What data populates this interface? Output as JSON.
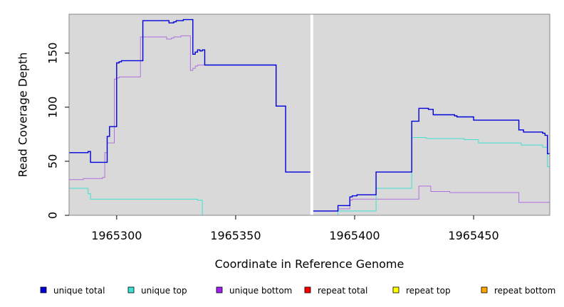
{
  "chart_data": {
    "type": "line",
    "title": "",
    "xlabel": "Coordinate in Reference Genome",
    "ylabel": "Read Coverage Depth",
    "xlim": [
      1965280,
      1965482
    ],
    "ylim": [
      0,
      186
    ],
    "x_ticks": [
      1965300,
      1965350,
      1965400,
      1965450
    ],
    "x_tick_labels": [
      "1965300",
      "1965350",
      "1965400",
      "1965450"
    ],
    "y_ticks": [
      0,
      50,
      100,
      150
    ],
    "y_tick_labels": [
      "0",
      "50",
      "100",
      "150"
    ],
    "gap_marker_x": 1965382,
    "background": "#d9d9d9",
    "grid": false,
    "legend_position": "bottom",
    "series": [
      {
        "name": "unique total",
        "color": "#0000dd",
        "points": [
          [
            1965280,
            58
          ],
          [
            1965288,
            58
          ],
          [
            1965288,
            59
          ],
          [
            1965289,
            59
          ],
          [
            1965289,
            49
          ],
          [
            1965296,
            49
          ],
          [
            1965296,
            73
          ],
          [
            1965297,
            73
          ],
          [
            1965297,
            82
          ],
          [
            1965300,
            82
          ],
          [
            1965300,
            141
          ],
          [
            1965301,
            141
          ],
          [
            1965301,
            142
          ],
          [
            1965302,
            142
          ],
          [
            1965302,
            143
          ],
          [
            1965311,
            143
          ],
          [
            1965311,
            180
          ],
          [
            1965322,
            180
          ],
          [
            1965322,
            178
          ],
          [
            1965324,
            178
          ],
          [
            1965324,
            179
          ],
          [
            1965325,
            179
          ],
          [
            1965325,
            180
          ],
          [
            1965328,
            180
          ],
          [
            1965328,
            181
          ],
          [
            1965332,
            181
          ],
          [
            1965332,
            149
          ],
          [
            1965333,
            149
          ],
          [
            1965333,
            151
          ],
          [
            1965334,
            151
          ],
          [
            1965334,
            153
          ],
          [
            1965335,
            153
          ],
          [
            1965335,
            152
          ],
          [
            1965336,
            152
          ],
          [
            1965336,
            153
          ],
          [
            1965337,
            153
          ],
          [
            1965337,
            139
          ],
          [
            1965367,
            139
          ],
          [
            1965367,
            101
          ],
          [
            1965371,
            101
          ],
          [
            1965371,
            40
          ],
          [
            1965382,
            40
          ],
          [
            1965382,
            0
          ]
        ]
      },
      {
        "name": "unique total",
        "color": "#0000dd",
        "points": [
          [
            1965382,
            4
          ],
          [
            1965393,
            4
          ],
          [
            1965393,
            9
          ],
          [
            1965398,
            9
          ],
          [
            1965398,
            17
          ],
          [
            1965399,
            17
          ],
          [
            1965399,
            18
          ],
          [
            1965401,
            18
          ],
          [
            1965401,
            19
          ],
          [
            1965409,
            19
          ],
          [
            1965409,
            40
          ],
          [
            1965424,
            40
          ],
          [
            1965424,
            87
          ],
          [
            1965427,
            87
          ],
          [
            1965427,
            99
          ],
          [
            1965431,
            99
          ],
          [
            1965431,
            98
          ],
          [
            1965433,
            98
          ],
          [
            1965433,
            93
          ],
          [
            1965442,
            93
          ],
          [
            1965442,
            92
          ],
          [
            1965443,
            92
          ],
          [
            1965443,
            91
          ],
          [
            1965450,
            91
          ],
          [
            1965450,
            88
          ],
          [
            1965469,
            88
          ],
          [
            1965469,
            79
          ],
          [
            1965471,
            79
          ],
          [
            1965471,
            77
          ],
          [
            1965479,
            77
          ],
          [
            1965479,
            76
          ],
          [
            1965480,
            76
          ],
          [
            1965480,
            74
          ],
          [
            1965481,
            74
          ],
          [
            1965481,
            57
          ],
          [
            1965482,
            57
          ]
        ]
      },
      {
        "name": "unique top",
        "color": "#40e0d0",
        "points": [
          [
            1965280,
            25
          ],
          [
            1965287,
            25
          ],
          [
            1965287,
            25
          ],
          [
            1965288,
            25
          ],
          [
            1965288,
            20
          ],
          [
            1965289,
            20
          ],
          [
            1965289,
            15
          ],
          [
            1965334,
            15
          ],
          [
            1965334,
            14
          ],
          [
            1965336,
            14
          ],
          [
            1965336,
            0
          ],
          [
            1965382,
            0
          ]
        ]
      },
      {
        "name": "unique top",
        "color": "#40e0d0",
        "points": [
          [
            1965382,
            0
          ],
          [
            1965393,
            0
          ],
          [
            1965393,
            4
          ],
          [
            1965409,
            4
          ],
          [
            1965409,
            25
          ],
          [
            1965424,
            25
          ],
          [
            1965424,
            72
          ],
          [
            1965430,
            72
          ],
          [
            1965430,
            71
          ],
          [
            1965446,
            71
          ],
          [
            1965446,
            70
          ],
          [
            1965452,
            70
          ],
          [
            1965452,
            67
          ],
          [
            1965470,
            67
          ],
          [
            1965470,
            65
          ],
          [
            1965479,
            65
          ],
          [
            1965479,
            63
          ],
          [
            1965481,
            63
          ],
          [
            1965481,
            45
          ],
          [
            1965482,
            45
          ]
        ]
      },
      {
        "name": "unique bottom",
        "color": "#b070e0",
        "points": [
          [
            1965280,
            33
          ],
          [
            1965286,
            33
          ],
          [
            1965286,
            34
          ],
          [
            1965294,
            34
          ],
          [
            1965294,
            35
          ],
          [
            1965295,
            35
          ],
          [
            1965295,
            58
          ],
          [
            1965296,
            58
          ],
          [
            1965296,
            67
          ],
          [
            1965299,
            67
          ],
          [
            1965299,
            126
          ],
          [
            1965300,
            126
          ],
          [
            1965300,
            127
          ],
          [
            1965301,
            127
          ],
          [
            1965301,
            128
          ],
          [
            1965310,
            128
          ],
          [
            1965310,
            165
          ],
          [
            1965321,
            165
          ],
          [
            1965321,
            163
          ],
          [
            1965323,
            163
          ],
          [
            1965323,
            164
          ],
          [
            1965324,
            164
          ],
          [
            1965324,
            165
          ],
          [
            1965327,
            165
          ],
          [
            1965327,
            166
          ],
          [
            1965331,
            166
          ],
          [
            1965331,
            134
          ],
          [
            1965332,
            134
          ],
          [
            1965332,
            136
          ],
          [
            1965333,
            136
          ],
          [
            1965333,
            138
          ],
          [
            1965334,
            138
          ],
          [
            1965334,
            139
          ],
          [
            1965367,
            139
          ],
          [
            1965367,
            101
          ],
          [
            1965371,
            101
          ],
          [
            1965371,
            40
          ],
          [
            1965382,
            40
          ]
        ]
      },
      {
        "name": "unique bottom",
        "color": "#b070e0",
        "points": [
          [
            1965382,
            4
          ],
          [
            1965393,
            4
          ],
          [
            1965393,
            6
          ],
          [
            1965398,
            6
          ],
          [
            1965398,
            14
          ],
          [
            1965399,
            14
          ],
          [
            1965399,
            15
          ],
          [
            1965424,
            15
          ],
          [
            1965424,
            15
          ],
          [
            1965427,
            15
          ],
          [
            1965427,
            27
          ],
          [
            1965432,
            27
          ],
          [
            1965432,
            22
          ],
          [
            1965440,
            22
          ],
          [
            1965440,
            21
          ],
          [
            1965469,
            21
          ],
          [
            1965469,
            12
          ],
          [
            1965482,
            12
          ]
        ]
      },
      {
        "name": "repeat total",
        "color": "#ff0000",
        "points": [
          [
            1965280,
            0
          ],
          [
            1965482,
            0
          ]
        ]
      },
      {
        "name": "repeat top",
        "color": "#ffff00",
        "points": [
          [
            1965280,
            0
          ],
          [
            1965482,
            0
          ]
        ]
      },
      {
        "name": "repeat bottom",
        "color": "#ffa500",
        "points": [
          [
            1965280,
            0
          ],
          [
            1965482,
            0
          ]
        ]
      }
    ],
    "legend": [
      {
        "label": "unique total",
        "color": "#0000dd"
      },
      {
        "label": "unique top",
        "color": "#40e0d0"
      },
      {
        "label": "unique bottom",
        "color": "#a020f0"
      },
      {
        "label": "repeat total",
        "color": "#ff0000"
      },
      {
        "label": "repeat top",
        "color": "#ffff00"
      },
      {
        "label": "repeat bottom",
        "color": "#ffa500"
      }
    ]
  }
}
